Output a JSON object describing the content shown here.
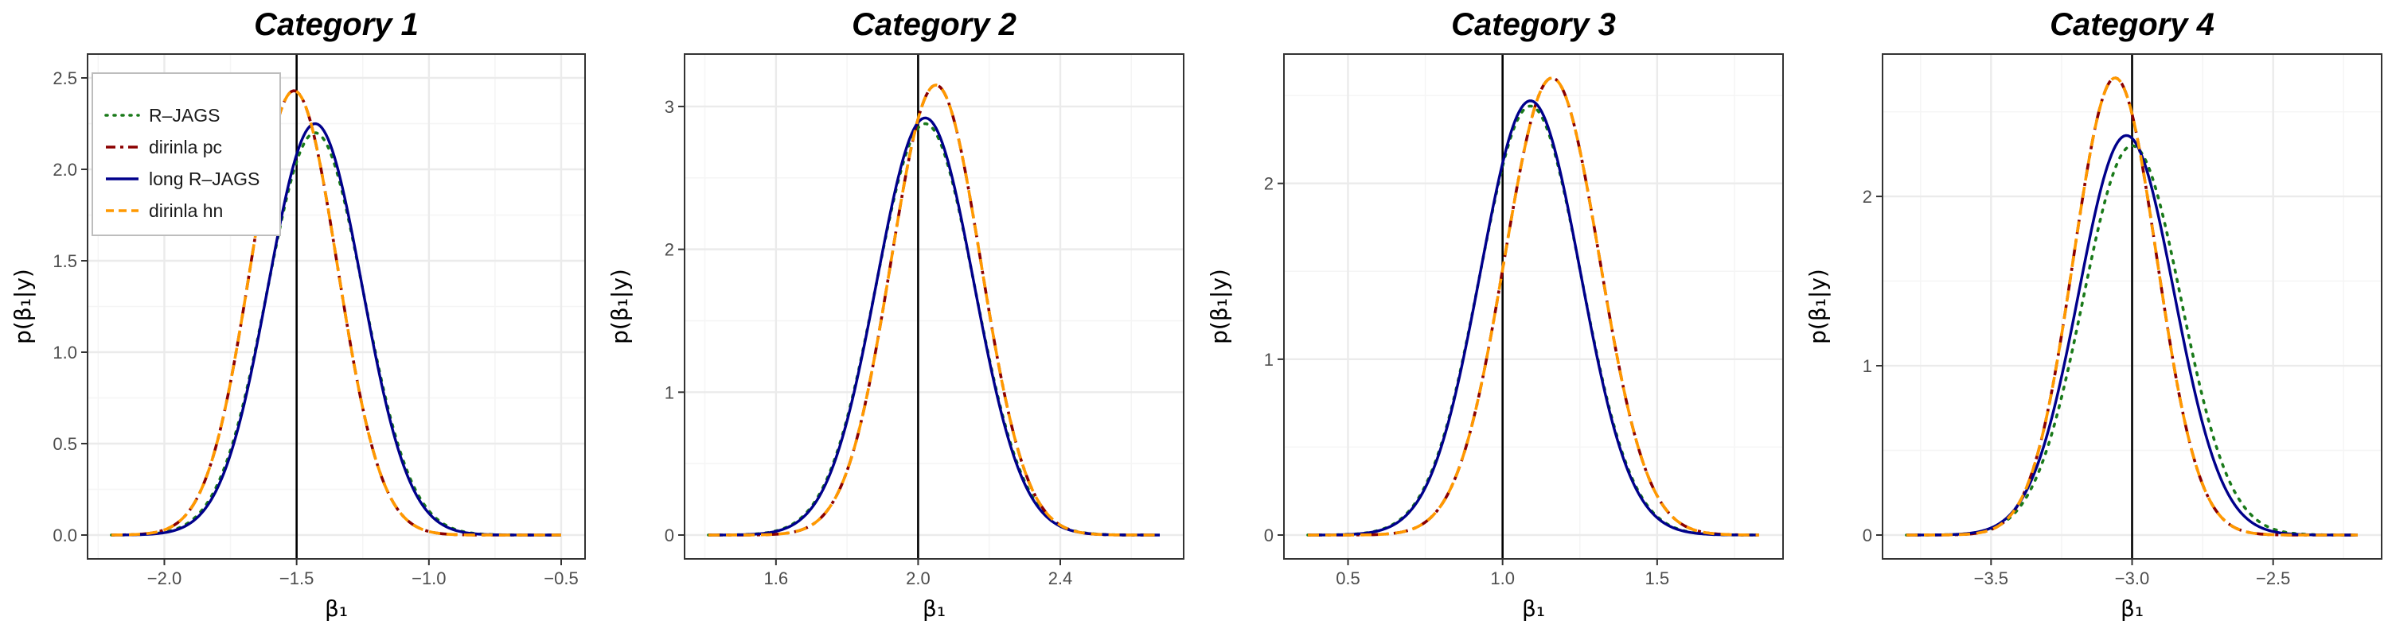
{
  "colors": {
    "R-JAGS": "#1a7a1a",
    "dirinla pc": "#8b0000",
    "long R-JAGS": "#00008b",
    "dirinla hn": "#ff9900",
    "grid_major": "#ebebeb",
    "grid_minor": "#f5f5f5",
    "frame": "#333333"
  },
  "legend": {
    "position": "top-left inside first panel",
    "entries": [
      "R–JAGS",
      "dirinla pc",
      "long R–JAGS",
      "dirinla hn"
    ]
  },
  "chart_data": [
    {
      "type": "line",
      "title": "Category 1",
      "xlabel": "β₁",
      "ylabel": "p(β₁|y)",
      "xlim": [
        -2.2,
        -0.5
      ],
      "ylim": [
        0,
        2.5
      ],
      "xticks": [
        -2.0,
        -1.5,
        -1.0,
        -0.5
      ],
      "xtick_labels": [
        "−2.0",
        "−1.5",
        "−1.0",
        "−0.5"
      ],
      "yticks": [
        0,
        0.5,
        1.0,
        1.5,
        2.0,
        2.5
      ],
      "ytick_labels": [
        "0.0",
        "0.5",
        "1.0",
        "1.5",
        "2.0",
        "2.5"
      ],
      "vline": -1.5,
      "grid": true,
      "series": [
        {
          "name": "R–JAGS",
          "style": "dotted",
          "mean": -1.43,
          "peak": 2.2
        },
        {
          "name": "dirinla pc",
          "style": "dashdot",
          "mean": -1.51,
          "peak": 2.43
        },
        {
          "name": "long R–JAGS",
          "style": "solid",
          "mean": -1.43,
          "peak": 2.25
        },
        {
          "name": "dirinla hn",
          "style": "dashed",
          "mean": -1.51,
          "peak": 2.43
        }
      ]
    },
    {
      "type": "line",
      "title": "Category 2",
      "xlabel": "β₁",
      "ylabel": "p(β₁|y)",
      "xlim": [
        1.41,
        2.68
      ],
      "ylim": [
        0,
        3.2
      ],
      "xticks": [
        1.6,
        2.0,
        2.4
      ],
      "xtick_labels": [
        "1.6",
        "2.0",
        "2.4"
      ],
      "yticks": [
        0,
        1,
        2,
        3
      ],
      "ytick_labels": [
        "0",
        "1",
        "2",
        "3"
      ],
      "vline": 2.0,
      "grid": true,
      "series": [
        {
          "name": "R–JAGS",
          "style": "dotted",
          "mean": 2.02,
          "peak": 2.88
        },
        {
          "name": "dirinla pc",
          "style": "dashdot",
          "mean": 2.05,
          "peak": 3.15
        },
        {
          "name": "long R–JAGS",
          "style": "solid",
          "mean": 2.02,
          "peak": 2.92
        },
        {
          "name": "dirinla hn",
          "style": "dashed",
          "mean": 2.05,
          "peak": 3.15
        }
      ]
    },
    {
      "type": "line",
      "title": "Category 3",
      "xlabel": "β₁",
      "ylabel": "p(β₁|y)",
      "xlim": [
        0.37,
        1.83
      ],
      "ylim": [
        0,
        2.6
      ],
      "xticks": [
        0.5,
        1.0,
        1.5
      ],
      "xtick_labels": [
        "0.5",
        "1.0",
        "1.5"
      ],
      "yticks": [
        0,
        1,
        2
      ],
      "ytick_labels": [
        "0",
        "1",
        "2"
      ],
      "vline": 1.0,
      "grid": true,
      "series": [
        {
          "name": "R–JAGS",
          "style": "dotted",
          "mean": 1.09,
          "peak": 2.44
        },
        {
          "name": "dirinla pc",
          "style": "dashdot",
          "mean": 1.16,
          "peak": 2.6
        },
        {
          "name": "long R–JAGS",
          "style": "solid",
          "mean": 1.09,
          "peak": 2.47
        },
        {
          "name": "dirinla hn",
          "style": "dashed",
          "mean": 1.16,
          "peak": 2.6
        }
      ]
    },
    {
      "type": "line",
      "title": "Category 4",
      "xlabel": "β₁",
      "ylabel": "p(β₁|y)",
      "xlim": [
        -3.8,
        -2.2
      ],
      "ylim": [
        0,
        2.7
      ],
      "xticks": [
        -3.5,
        -3.0,
        -2.5
      ],
      "xtick_labels": [
        "−3.5",
        "−3.0",
        "−2.5"
      ],
      "yticks": [
        0,
        1,
        2
      ],
      "ytick_labels": [
        "0",
        "1",
        "2"
      ],
      "vline": -3.0,
      "grid": true,
      "series": [
        {
          "name": "R–JAGS",
          "style": "dotted",
          "mean": -3.0,
          "peak": 2.3
        },
        {
          "name": "dirinla pc",
          "style": "dashdot",
          "mean": -3.06,
          "peak": 2.7
        },
        {
          "name": "long R–JAGS",
          "style": "solid",
          "mean": -3.02,
          "peak": 2.36
        },
        {
          "name": "dirinla hn",
          "style": "dashed",
          "mean": -3.06,
          "peak": 2.7
        }
      ]
    }
  ]
}
